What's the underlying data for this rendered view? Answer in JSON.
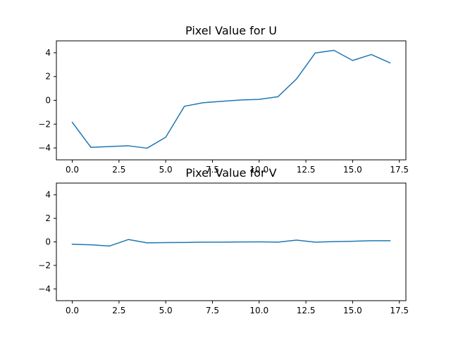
{
  "chart_data": [
    {
      "type": "line",
      "title": "Pixel Value for U",
      "xlabel": "",
      "ylabel": "",
      "xlim": [
        -0.85,
        17.85
      ],
      "ylim": [
        -5,
        5
      ],
      "xticks": [
        0.0,
        2.5,
        5.0,
        7.5,
        10.0,
        12.5,
        15.0,
        17.5
      ],
      "xtick_labels": [
        "0.0",
        "2.5",
        "5.0",
        "7.5",
        "10.0",
        "12.5",
        "15.0",
        "17.5"
      ],
      "yticks": [
        -4,
        -2,
        0,
        2,
        4
      ],
      "ytick_labels": [
        "−4",
        "−2",
        "0",
        "2",
        "4"
      ],
      "grid": false,
      "series": [
        {
          "color": "#1f77b4",
          "x": [
            0,
            1,
            2,
            3,
            4,
            5,
            6,
            7,
            8,
            9,
            10,
            11,
            12,
            13,
            14,
            15,
            16,
            17
          ],
          "y": [
            -1.85,
            -3.95,
            -3.88,
            -3.82,
            -4.02,
            -3.1,
            -0.5,
            -0.2,
            -0.08,
            0.03,
            0.08,
            0.3,
            1.8,
            3.98,
            4.2,
            3.35,
            3.85,
            3.15
          ]
        }
      ]
    },
    {
      "type": "line",
      "title": "Pixel Value for V",
      "xlabel": "",
      "ylabel": "",
      "xlim": [
        -0.85,
        17.85
      ],
      "ylim": [
        -5,
        5
      ],
      "xticks": [
        0.0,
        2.5,
        5.0,
        7.5,
        10.0,
        12.5,
        15.0,
        17.5
      ],
      "xtick_labels": [
        "0.0",
        "2.5",
        "5.0",
        "7.5",
        "10.0",
        "12.5",
        "15.0",
        "17.5"
      ],
      "yticks": [
        -4,
        -2,
        0,
        2,
        4
      ],
      "ytick_labels": [
        "−4",
        "−2",
        "0",
        "2",
        "4"
      ],
      "grid": false,
      "series": [
        {
          "color": "#1f77b4",
          "x": [
            0,
            1,
            2,
            3,
            4,
            5,
            6,
            7,
            8,
            9,
            10,
            11,
            12,
            13,
            14,
            15,
            16,
            17
          ],
          "y": [
            -0.2,
            -0.25,
            -0.35,
            0.2,
            -0.08,
            -0.06,
            -0.05,
            -0.02,
            -0.02,
            -0.01,
            0.0,
            -0.02,
            0.15,
            -0.02,
            0.02,
            0.05,
            0.1,
            0.1
          ]
        }
      ]
    }
  ]
}
